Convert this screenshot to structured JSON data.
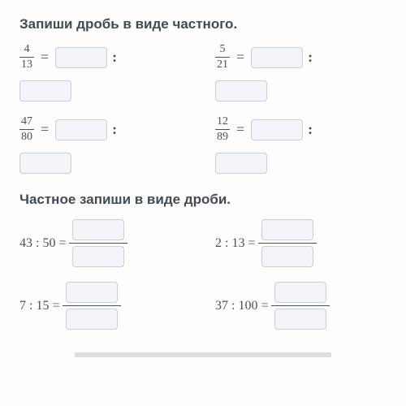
{
  "section1": {
    "title": "Запиши дробь в виде частного.",
    "items": [
      {
        "num": "4",
        "den": "13"
      },
      {
        "num": "5",
        "den": "21"
      },
      {
        "num": "47",
        "den": "80"
      },
      {
        "num": "12",
        "den": "89"
      }
    ]
  },
  "section2": {
    "title": "Частное запиши в виде дроби.",
    "items": [
      {
        "a": "43",
        "b": "50"
      },
      {
        "a": "2",
        "b": "13"
      },
      {
        "a": "7",
        "b": "15"
      },
      {
        "a": "37",
        "b": "100"
      }
    ]
  },
  "symbols": {
    "eq": "=",
    "colon": ":"
  },
  "styles": {
    "blank_bg": "#f2f4f7",
    "blank_border": "#c9cfd6",
    "text_color": "#4a5158",
    "heading_color": "#424a52"
  }
}
